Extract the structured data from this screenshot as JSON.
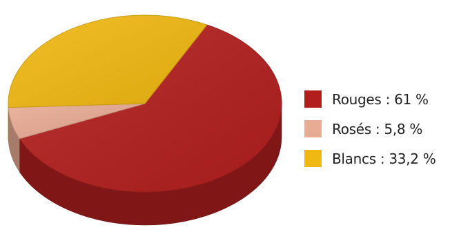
{
  "chart_data": {
    "type": "pie",
    "style": "3d",
    "legend_position": "right",
    "series": [
      {
        "label": "Rouges : 61 %",
        "value": 61,
        "color": "#b21e1e"
      },
      {
        "label": "Rosés : 5,8 %",
        "value": 5.8,
        "color": "#e8ab93"
      },
      {
        "label": "Blancs : 33,2 %",
        "value": 33.2,
        "color": "#f0b812"
      }
    ]
  }
}
